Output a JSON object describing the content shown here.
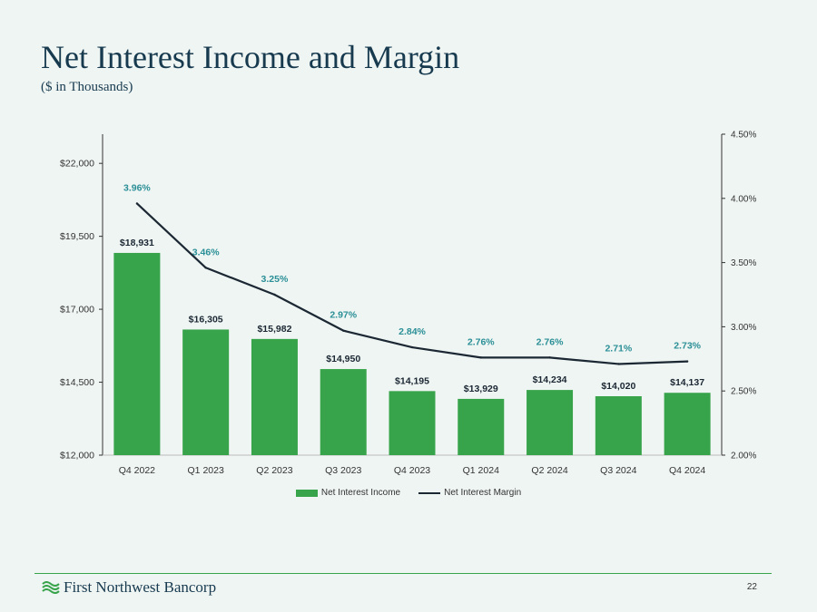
{
  "page": {
    "title": "Net Interest Income and Margin",
    "subtitle": "($ in Thousands)",
    "company": "First Northwest Bancorp",
    "page_number": "22"
  },
  "colors": {
    "bar": "#37a34a",
    "line": "#1b2733",
    "margin_label": "#2a8f96",
    "text": "#1b2733",
    "axis": "#333333"
  },
  "chart_data": {
    "type": "bar",
    "title": "",
    "categories": [
      "Q4 2022",
      "Q1 2023",
      "Q2 2023",
      "Q3 2023",
      "Q4 2023",
      "Q1 2024",
      "Q2 2024",
      "Q3 2024",
      "Q4 2024"
    ],
    "series": [
      {
        "name": "Net Interest Income",
        "type": "bar",
        "axis": "left",
        "values": [
          18931,
          16305,
          15982,
          14950,
          14195,
          13929,
          14234,
          14020,
          14137
        ],
        "labels": [
          "$18,931",
          "$16,305",
          "$15,982",
          "$14,950",
          "$14,195",
          "$13,929",
          "$14,234",
          "$14,020",
          "$14,137"
        ]
      },
      {
        "name": "Net Interest Margin",
        "type": "line",
        "axis": "right",
        "values": [
          3.96,
          3.46,
          3.25,
          2.97,
          2.84,
          2.76,
          2.76,
          2.71,
          2.73
        ],
        "labels": [
          "3.96%",
          "3.46%",
          "3.25%",
          "2.97%",
          "2.84%",
          "2.76%",
          "2.76%",
          "2.71%",
          "2.73%"
        ]
      }
    ],
    "y_left": {
      "min": 12000,
      "max": 23000,
      "ticks": [
        12000,
        14500,
        17000,
        19500,
        22000
      ],
      "tick_labels": [
        "$12,000",
        "$14,500",
        "$17,000",
        "$19,500",
        "$22,000"
      ]
    },
    "y_right": {
      "min": 2.0,
      "max": 4.5,
      "ticks": [
        2.0,
        2.5,
        3.0,
        3.5,
        4.0,
        4.5
      ],
      "tick_labels": [
        "2.00%",
        "2.50%",
        "3.00%",
        "3.50%",
        "4.00%",
        "4.50%"
      ]
    },
    "grid": false,
    "legend_position": "bottom"
  }
}
